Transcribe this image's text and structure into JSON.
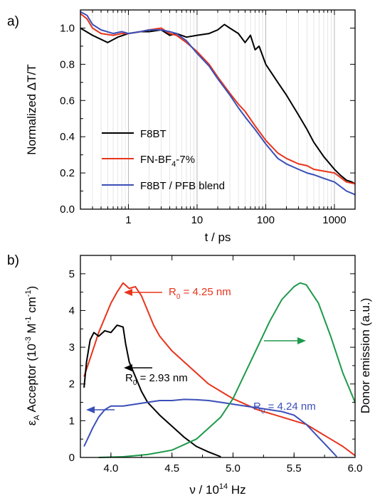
{
  "chart_data": [
    {
      "type": "line",
      "panel_label": "a)",
      "xlabel": "t / ps",
      "ylabel": "Normalized ΔT/T",
      "x_scale": "log",
      "xlim": [
        0.2,
        2000
      ],
      "ylim": [
        0.0,
        1.1
      ],
      "x_tick_labels": [
        "1",
        "10",
        "100",
        "1000"
      ],
      "y_tick_labels": [
        "0.0",
        "0.2",
        "0.4",
        "0.6",
        "0.8",
        "1.0"
      ],
      "grid": "vertical minor gridlines",
      "legend_position": "lower-left",
      "series": [
        {
          "name": "F8BT",
          "color": "#000000",
          "points": [
            [
              0.2,
              1.0
            ],
            [
              0.3,
              0.96
            ],
            [
              0.5,
              0.92
            ],
            [
              0.7,
              0.95
            ],
            [
              1.0,
              0.97
            ],
            [
              1.5,
              0.98
            ],
            [
              2,
              0.98
            ],
            [
              3,
              0.99
            ],
            [
              4,
              0.96
            ],
            [
              5,
              0.97
            ],
            [
              7,
              0.95
            ],
            [
              10,
              0.96
            ],
            [
              15,
              0.97
            ],
            [
              20,
              0.99
            ],
            [
              25,
              1.02
            ],
            [
              30,
              1.0
            ],
            [
              40,
              0.97
            ],
            [
              50,
              0.92
            ],
            [
              60,
              0.96
            ],
            [
              70,
              0.88
            ],
            [
              80,
              0.9
            ],
            [
              100,
              0.8
            ],
            [
              150,
              0.7
            ],
            [
              200,
              0.63
            ],
            [
              300,
              0.52
            ],
            [
              400,
              0.44
            ],
            [
              500,
              0.37
            ],
            [
              700,
              0.29
            ],
            [
              1000,
              0.22
            ],
            [
              1200,
              0.19
            ],
            [
              1500,
              0.16
            ],
            [
              1800,
              0.15
            ],
            [
              2000,
              0.14
            ]
          ]
        },
        {
          "name": "FN-BF4-7%",
          "display_name": "FN-BF",
          "display_sub": "4",
          "display_suffix": "-7%",
          "color": "#e8341c",
          "points": [
            [
              0.2,
              1.08
            ],
            [
              0.25,
              1.05
            ],
            [
              0.3,
              1.0
            ],
            [
              0.4,
              0.97
            ],
            [
              0.6,
              0.96
            ],
            [
              0.8,
              0.97
            ],
            [
              1.0,
              0.97
            ],
            [
              1.5,
              0.98
            ],
            [
              2,
              0.99
            ],
            [
              3,
              1.0
            ],
            [
              4,
              0.97
            ],
            [
              5,
              0.96
            ],
            [
              7,
              0.92
            ],
            [
              10,
              0.87
            ],
            [
              15,
              0.8
            ],
            [
              20,
              0.73
            ],
            [
              30,
              0.64
            ],
            [
              40,
              0.58
            ],
            [
              50,
              0.54
            ],
            [
              70,
              0.46
            ],
            [
              100,
              0.38
            ],
            [
              150,
              0.31
            ],
            [
              200,
              0.28
            ],
            [
              300,
              0.25
            ],
            [
              400,
              0.24
            ],
            [
              500,
              0.22
            ],
            [
              700,
              0.21
            ],
            [
              1000,
              0.2
            ],
            [
              1500,
              0.15
            ],
            [
              2000,
              0.14
            ]
          ]
        },
        {
          "name": "F8BT / PFB blend",
          "color": "#3b4fb8",
          "points": [
            [
              0.2,
              1.09
            ],
            [
              0.25,
              1.07
            ],
            [
              0.3,
              1.02
            ],
            [
              0.4,
              0.99
            ],
            [
              0.6,
              0.97
            ],
            [
              0.8,
              0.98
            ],
            [
              1.0,
              0.97
            ],
            [
              1.5,
              0.98
            ],
            [
              2,
              0.99
            ],
            [
              3,
              0.99
            ],
            [
              4,
              0.98
            ],
            [
              5,
              0.97
            ],
            [
              7,
              0.93
            ],
            [
              10,
              0.86
            ],
            [
              15,
              0.79
            ],
            [
              20,
              0.72
            ],
            [
              30,
              0.63
            ],
            [
              40,
              0.56
            ],
            [
              50,
              0.51
            ],
            [
              70,
              0.44
            ],
            [
              100,
              0.36
            ],
            [
              150,
              0.28
            ],
            [
              200,
              0.25
            ],
            [
              300,
              0.22
            ],
            [
              400,
              0.2
            ],
            [
              500,
              0.19
            ],
            [
              700,
              0.17
            ],
            [
              1000,
              0.15
            ],
            [
              1500,
              0.1
            ],
            [
              2000,
              0.08
            ]
          ]
        }
      ]
    },
    {
      "type": "line",
      "panel_label": "b)",
      "xlabel": "ν / 10¹⁴ Hz",
      "xlabel_display": {
        "main": "ν / 10",
        "sup": "14",
        "suffix": " Hz"
      },
      "ylabel_left": "εA Acceptor (10⁻³ M⁻¹ cm⁻¹)",
      "ylabel_left_display": {
        "eps": "ε",
        "eps_sub": "A",
        "text": " Acceptor (10",
        "sup1": "-3",
        "mid": " M",
        "sup2": "-1",
        "mid2": " cm",
        "sup3": "-1",
        "end": ")"
      },
      "ylabel_right": "Donor emission (a.u.)",
      "xlim": [
        3.75,
        6.0
      ],
      "ylim": [
        0,
        5.5
      ],
      "x_tick_labels": [
        "4.0",
        "4.5",
        "5.0",
        "5.5",
        "6.0"
      ],
      "y_tick_labels": [
        "0",
        "1",
        "2",
        "3",
        "4",
        "5"
      ],
      "annotations": [
        {
          "text": "R0 = 4.25 nm",
          "pre": "R",
          "sub": "0",
          "post": " = 4.25 nm",
          "color": "#e8341c"
        },
        {
          "text": "R0 = 2.93 nm",
          "pre": "R",
          "sub": "0",
          "post": " = 2.93 nm",
          "color": "#000000"
        },
        {
          "text": "R0 = 4.24 nm",
          "pre": "R",
          "sub": "0",
          "post": " = 4.24 nm",
          "color": "#3b4fb8"
        }
      ],
      "series": [
        {
          "color": "#e8341c",
          "axis": "left",
          "points": [
            [
              3.78,
              2.2
            ],
            [
              3.85,
              2.9
            ],
            [
              3.9,
              3.4
            ],
            [
              3.95,
              3.8
            ],
            [
              4.0,
              4.2
            ],
            [
              4.05,
              4.5
            ],
            [
              4.1,
              4.75
            ],
            [
              4.15,
              4.6
            ],
            [
              4.2,
              4.65
            ],
            [
              4.25,
              4.4
            ],
            [
              4.3,
              4.0
            ],
            [
              4.35,
              3.6
            ],
            [
              4.4,
              3.3
            ],
            [
              4.5,
              2.9
            ],
            [
              4.6,
              2.6
            ],
            [
              4.7,
              2.3
            ],
            [
              4.8,
              2.0
            ],
            [
              4.9,
              1.8
            ],
            [
              5.0,
              1.6
            ],
            [
              5.1,
              1.45
            ],
            [
              5.2,
              1.3
            ],
            [
              5.3,
              1.2
            ],
            [
              5.4,
              1.1
            ],
            [
              5.5,
              1.0
            ],
            [
              5.6,
              0.9
            ],
            [
              5.7,
              0.7
            ],
            [
              5.8,
              0.5
            ],
            [
              5.9,
              0.3
            ],
            [
              6.0,
              0.05
            ]
          ]
        },
        {
          "color": "#000000",
          "axis": "left",
          "points": [
            [
              3.78,
              1.9
            ],
            [
              3.8,
              2.6
            ],
            [
              3.83,
              3.2
            ],
            [
              3.86,
              3.4
            ],
            [
              3.9,
              3.3
            ],
            [
              3.95,
              3.45
            ],
            [
              4.0,
              3.4
            ],
            [
              4.05,
              3.6
            ],
            [
              4.1,
              3.55
            ],
            [
              4.12,
              3.1
            ],
            [
              4.15,
              2.6
            ],
            [
              4.2,
              2.2
            ],
            [
              4.25,
              1.8
            ],
            [
              4.3,
              1.5
            ],
            [
              4.4,
              1.15
            ],
            [
              4.5,
              0.85
            ],
            [
              4.6,
              0.55
            ],
            [
              4.7,
              0.3
            ],
            [
              4.8,
              0.15
            ],
            [
              4.9,
              0.02
            ]
          ]
        },
        {
          "color": "#3b4fb8",
          "axis": "left",
          "points": [
            [
              3.78,
              0.3
            ],
            [
              3.85,
              0.8
            ],
            [
              3.9,
              1.1
            ],
            [
              3.95,
              1.3
            ],
            [
              4.0,
              1.4
            ],
            [
              4.1,
              1.4
            ],
            [
              4.2,
              1.45
            ],
            [
              4.3,
              1.5
            ],
            [
              4.4,
              1.55
            ],
            [
              4.5,
              1.55
            ],
            [
              4.6,
              1.58
            ],
            [
              4.7,
              1.57
            ],
            [
              4.8,
              1.55
            ],
            [
              4.9,
              1.5
            ],
            [
              5.0,
              1.45
            ],
            [
              5.1,
              1.4
            ],
            [
              5.2,
              1.35
            ],
            [
              5.3,
              1.3
            ],
            [
              5.4,
              1.25
            ],
            [
              5.5,
              1.15
            ],
            [
              5.6,
              0.9
            ],
            [
              5.7,
              0.55
            ],
            [
              5.8,
              0.2
            ],
            [
              5.85,
              0.02
            ]
          ]
        },
        {
          "color": "#1e9a4a",
          "axis": "right",
          "points": [
            [
              3.9,
              0.0
            ],
            [
              4.1,
              0.02
            ],
            [
              4.3,
              0.08
            ],
            [
              4.5,
              0.2
            ],
            [
              4.7,
              0.5
            ],
            [
              4.9,
              1.1
            ],
            [
              5.0,
              1.6
            ],
            [
              5.1,
              2.3
            ],
            [
              5.2,
              3.0
            ],
            [
              5.3,
              3.7
            ],
            [
              5.4,
              4.3
            ],
            [
              5.5,
              4.65
            ],
            [
              5.55,
              4.75
            ],
            [
              5.6,
              4.7
            ],
            [
              5.7,
              4.2
            ],
            [
              5.8,
              3.3
            ],
            [
              5.9,
              2.3
            ],
            [
              6.0,
              1.5
            ]
          ]
        }
      ]
    }
  ]
}
